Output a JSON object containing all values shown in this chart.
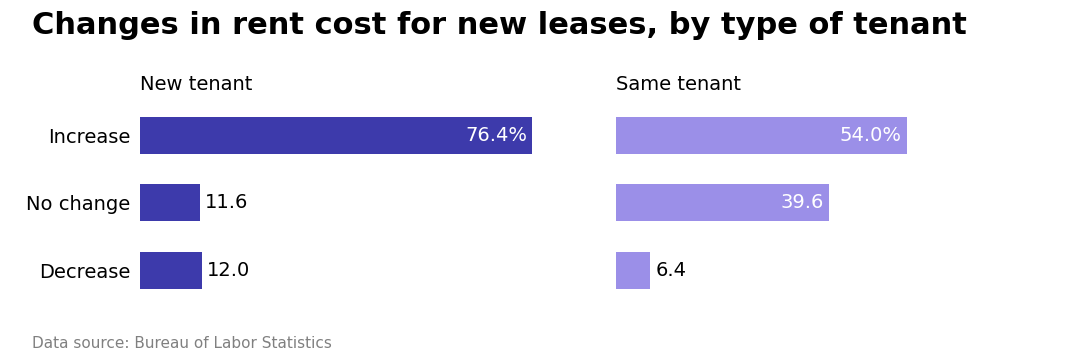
{
  "title": "Changes in rent cost for new leases, by type of tenant",
  "source": "Data source: Bureau of Labor Statistics",
  "categories": [
    "Increase",
    "No change",
    "Decrease"
  ],
  "new_tenant": {
    "label": "New tenant",
    "values": [
      76.4,
      11.6,
      12.0
    ],
    "color": "#3d3aab",
    "labels": [
      "76.4%",
      "11.6",
      "12.0"
    ],
    "label_inside": [
      true,
      false,
      false
    ]
  },
  "same_tenant": {
    "label": "Same tenant",
    "values": [
      54.0,
      39.6,
      6.4
    ],
    "color": "#9b8fe8",
    "labels": [
      "54.0%",
      "39.6",
      "6.4"
    ],
    "label_inside": [
      true,
      true,
      false
    ]
  },
  "max_val": 80,
  "bar_height": 0.55,
  "figsize": [
    10.8,
    3.62
  ],
  "dpi": 100,
  "title_fontsize": 22,
  "label_fontsize": 14,
  "cat_fontsize": 14,
  "header_fontsize": 14
}
